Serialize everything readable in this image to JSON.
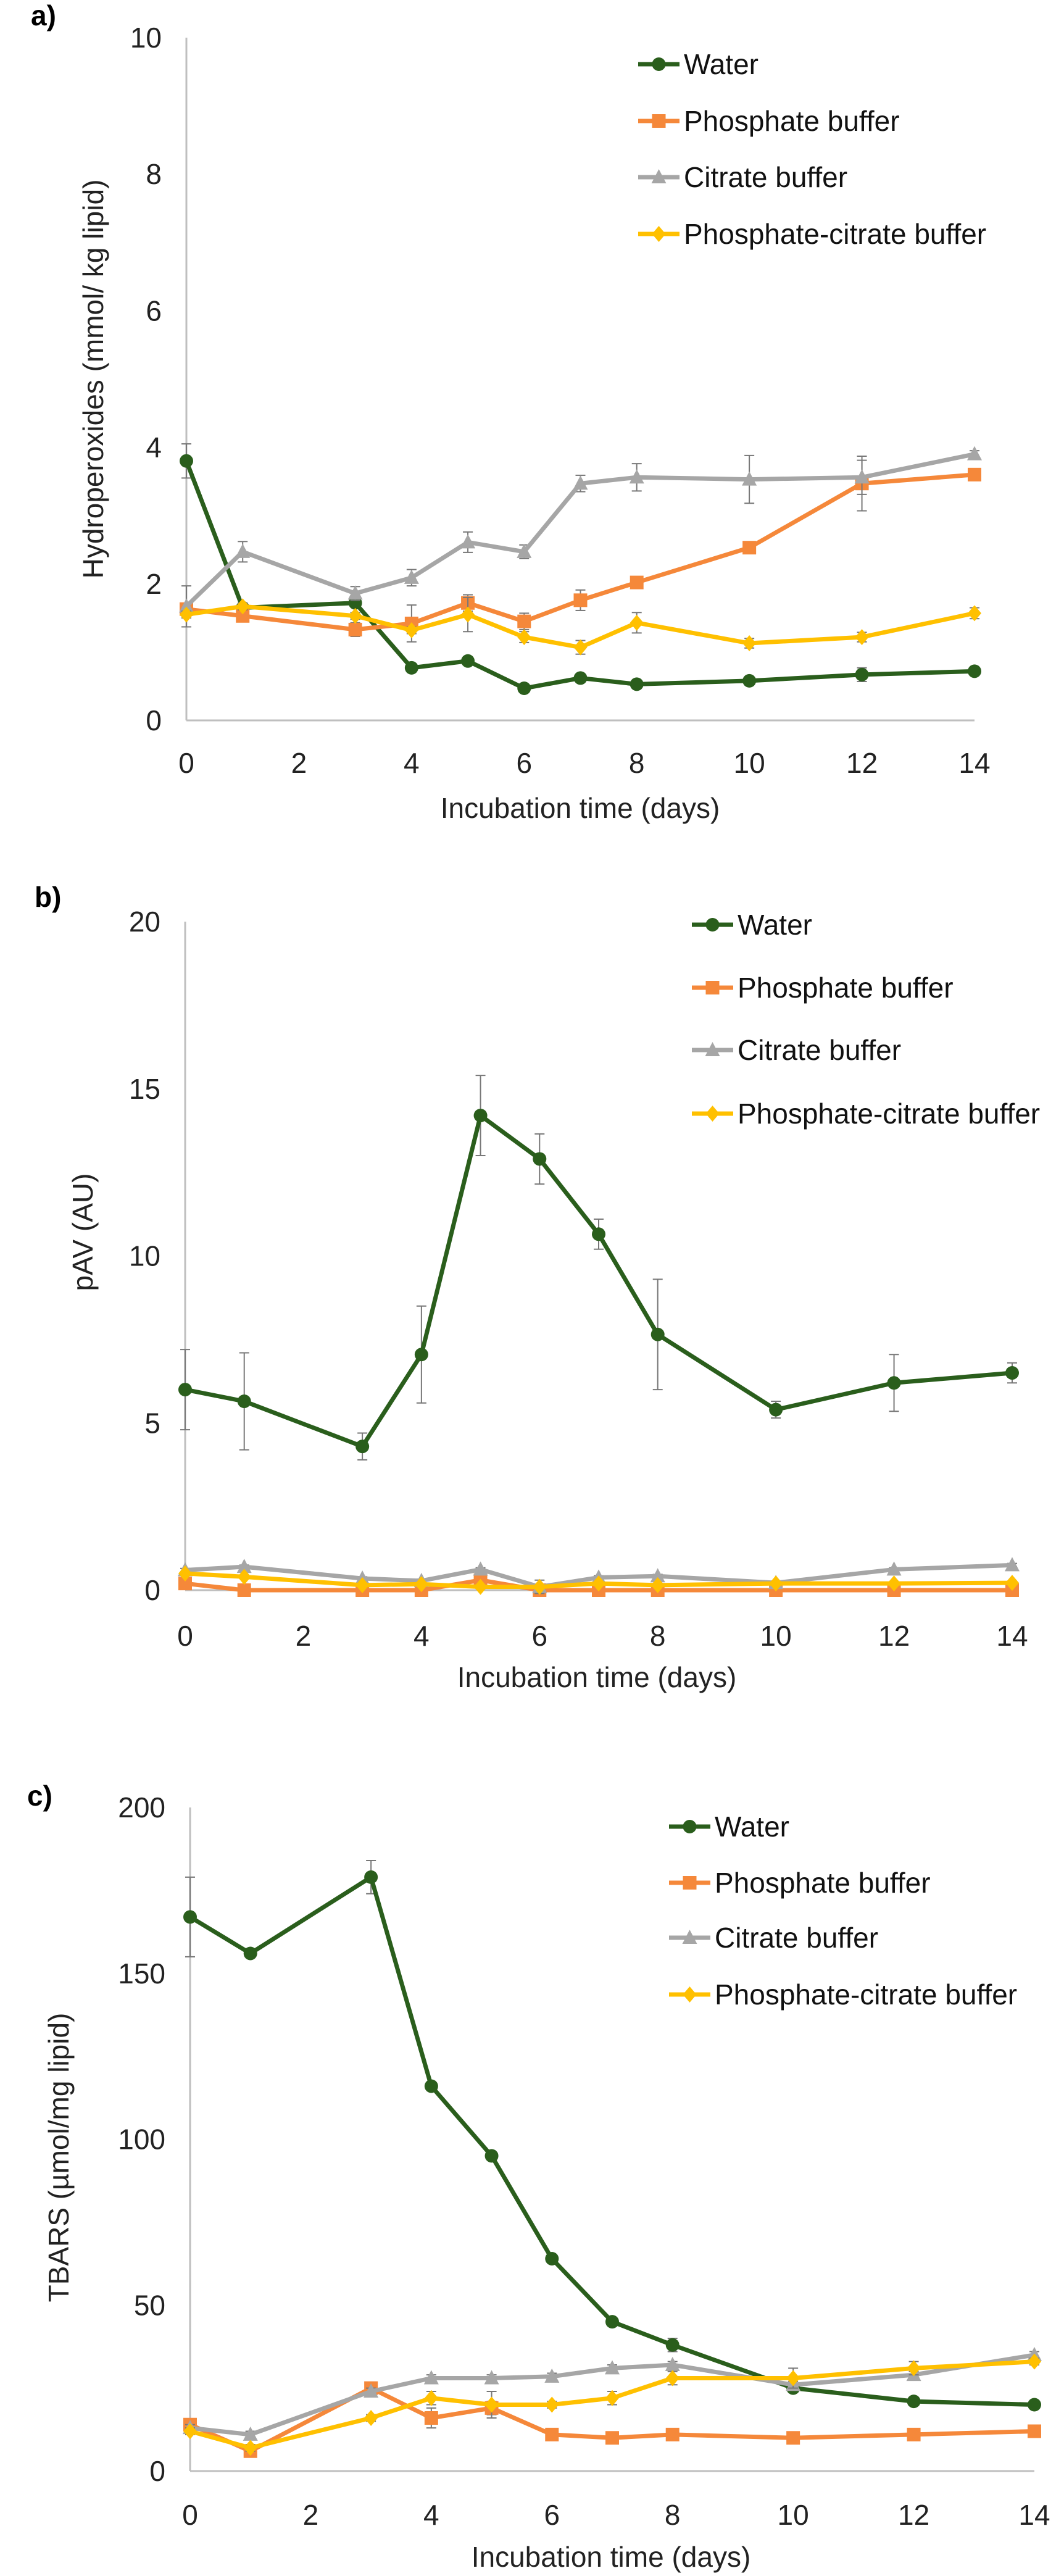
{
  "series_styles": [
    {
      "name": "Water",
      "color": "#2a5e1c",
      "marker": "circle"
    },
    {
      "name": "Phosphate buffer",
      "color": "#f5883a",
      "marker": "square"
    },
    {
      "name": "Citrate buffer",
      "color": "#a6a6a6",
      "marker": "triangle"
    },
    {
      "name": "Phosphate-citrate buffer",
      "color": "#ffc000",
      "marker": "diamond"
    }
  ],
  "chart_data": [
    {
      "type": "line",
      "panel_label": "a)",
      "xlabel": "Incubation time (days)",
      "ylabel": "Hydroperoxides (mmol/ kg lipid)",
      "xlim": [
        0,
        14
      ],
      "ylim": [
        0,
        10
      ],
      "xticks": [
        0,
        2,
        4,
        6,
        8,
        10,
        12,
        14
      ],
      "yticks": [
        0,
        2,
        4,
        6,
        8,
        10
      ],
      "legend": "top-right",
      "x": [
        0,
        1,
        3,
        4,
        5,
        6,
        7,
        8,
        10,
        12,
        14
      ],
      "series": [
        {
          "name": "Water",
          "values": [
            3.8,
            1.65,
            1.72,
            0.77,
            0.87,
            0.47,
            0.62,
            0.53,
            0.58,
            0.67,
            0.72
          ],
          "errors": [
            0.25,
            0.03,
            0.05,
            0.05,
            0.03,
            0.03,
            0.05,
            0.03,
            0.03,
            0.1,
            0.03
          ]
        },
        {
          "name": "Phosphate buffer",
          "values": [
            1.63,
            1.53,
            1.33,
            1.42,
            1.72,
            1.45,
            1.76,
            2.02,
            2.53,
            3.47,
            3.6
          ],
          "errors": [
            0.05,
            0.07,
            0.1,
            0.27,
            0.12,
            0.12,
            0.15,
            0.05,
            0.08,
            0.4,
            0.05
          ]
        },
        {
          "name": "Citrate buffer",
          "values": [
            1.67,
            2.47,
            1.86,
            2.09,
            2.61,
            2.47,
            3.47,
            3.56,
            3.53,
            3.56,
            3.9
          ],
          "errors": [
            0.3,
            0.15,
            0.1,
            0.12,
            0.15,
            0.1,
            0.12,
            0.2,
            0.35,
            0.25,
            0.05
          ]
        },
        {
          "name": "Phosphate-citrate buffer",
          "values": [
            1.55,
            1.67,
            1.53,
            1.32,
            1.55,
            1.22,
            1.07,
            1.43,
            1.13,
            1.22,
            1.57
          ],
          "errors": [
            0.05,
            0.05,
            0.05,
            0.05,
            0.25,
            0.08,
            0.1,
            0.15,
            0.07,
            0.07,
            0.08
          ]
        }
      ]
    },
    {
      "type": "line",
      "panel_label": "b)",
      "xlabel": "Incubation time (days)",
      "ylabel": "pAV (AU)",
      "xlim": [
        0,
        14
      ],
      "ylim": [
        0,
        20
      ],
      "xticks": [
        0,
        2,
        4,
        6,
        8,
        10,
        12,
        14
      ],
      "yticks": [
        0,
        5,
        10,
        15,
        20
      ],
      "legend": "top-right",
      "x": [
        0,
        1,
        3,
        4,
        5,
        6,
        7,
        8,
        10,
        12,
        14
      ],
      "series": [
        {
          "name": "Water",
          "values": [
            6.0,
            5.65,
            4.3,
            7.05,
            14.2,
            12.9,
            10.65,
            7.65,
            5.4,
            6.2,
            6.5
          ],
          "errors": [
            1.2,
            1.45,
            0.4,
            1.45,
            1.2,
            0.75,
            0.45,
            1.65,
            0.25,
            0.85,
            0.3
          ]
        },
        {
          "name": "Phosphate buffer",
          "values": [
            0.2,
            0.0,
            0.0,
            0.0,
            0.3,
            0.0,
            0.0,
            0.0,
            0.0,
            0.0,
            0.0
          ],
          "errors": [
            0.05,
            0,
            0,
            0,
            0.1,
            0,
            0,
            0,
            0,
            0,
            0
          ]
        },
        {
          "name": "Citrate buffer",
          "values": [
            0.6,
            0.7,
            0.35,
            0.28,
            0.62,
            0.1,
            0.38,
            0.42,
            0.22,
            0.62,
            0.75
          ],
          "errors": [
            0.05,
            0.05,
            0.05,
            0.05,
            0.05,
            0.2,
            0.05,
            0.05,
            0.05,
            0.05,
            0.05
          ]
        },
        {
          "name": "Phosphate-citrate buffer",
          "values": [
            0.5,
            0.4,
            0.15,
            0.18,
            0.1,
            0.1,
            0.2,
            0.15,
            0.2,
            0.2,
            0.22
          ],
          "errors": [
            0.05,
            0.05,
            0.05,
            0.05,
            0.05,
            0.05,
            0.05,
            0.05,
            0.05,
            0.05,
            0.05
          ]
        }
      ]
    },
    {
      "type": "line",
      "panel_label": "c)",
      "xlabel": "Incubation time (days)",
      "ylabel": "TBARS (µmol/mg lipid)",
      "xlim": [
        0,
        14
      ],
      "ylim": [
        0,
        200
      ],
      "xticks": [
        0,
        2,
        4,
        6,
        8,
        10,
        12,
        14
      ],
      "yticks": [
        0,
        50,
        100,
        150,
        200
      ],
      "legend": "top-right",
      "x": [
        0,
        1,
        3,
        4,
        5,
        6,
        7,
        8,
        10,
        12,
        14
      ],
      "series": [
        {
          "name": "Water",
          "values": [
            167,
            156,
            179,
            116,
            95,
            64,
            45,
            38,
            25,
            21,
            20
          ],
          "errors": [
            12,
            1,
            5,
            1,
            1,
            1,
            1,
            2,
            1,
            1,
            1
          ]
        },
        {
          "name": "Phosphate buffer",
          "values": [
            14,
            6,
            25,
            16,
            19,
            11,
            10,
            11,
            10,
            11,
            12
          ],
          "errors": [
            1,
            1,
            1,
            3,
            2,
            1,
            1,
            1,
            1,
            1,
            1
          ]
        },
        {
          "name": "Citrate buffer",
          "values": [
            13,
            11,
            24,
            28,
            28,
            28.5,
            31,
            32,
            26,
            29,
            35
          ],
          "errors": [
            1,
            1,
            1,
            1,
            1,
            1,
            1,
            1,
            1,
            1,
            1
          ]
        },
        {
          "name": "Phosphate-citrate buffer",
          "values": [
            12,
            7,
            16,
            22,
            20,
            20,
            22,
            28,
            28,
            31,
            33
          ],
          "errors": [
            1,
            1,
            1,
            2,
            4,
            1,
            2,
            2,
            3,
            2,
            1
          ]
        }
      ]
    }
  ]
}
